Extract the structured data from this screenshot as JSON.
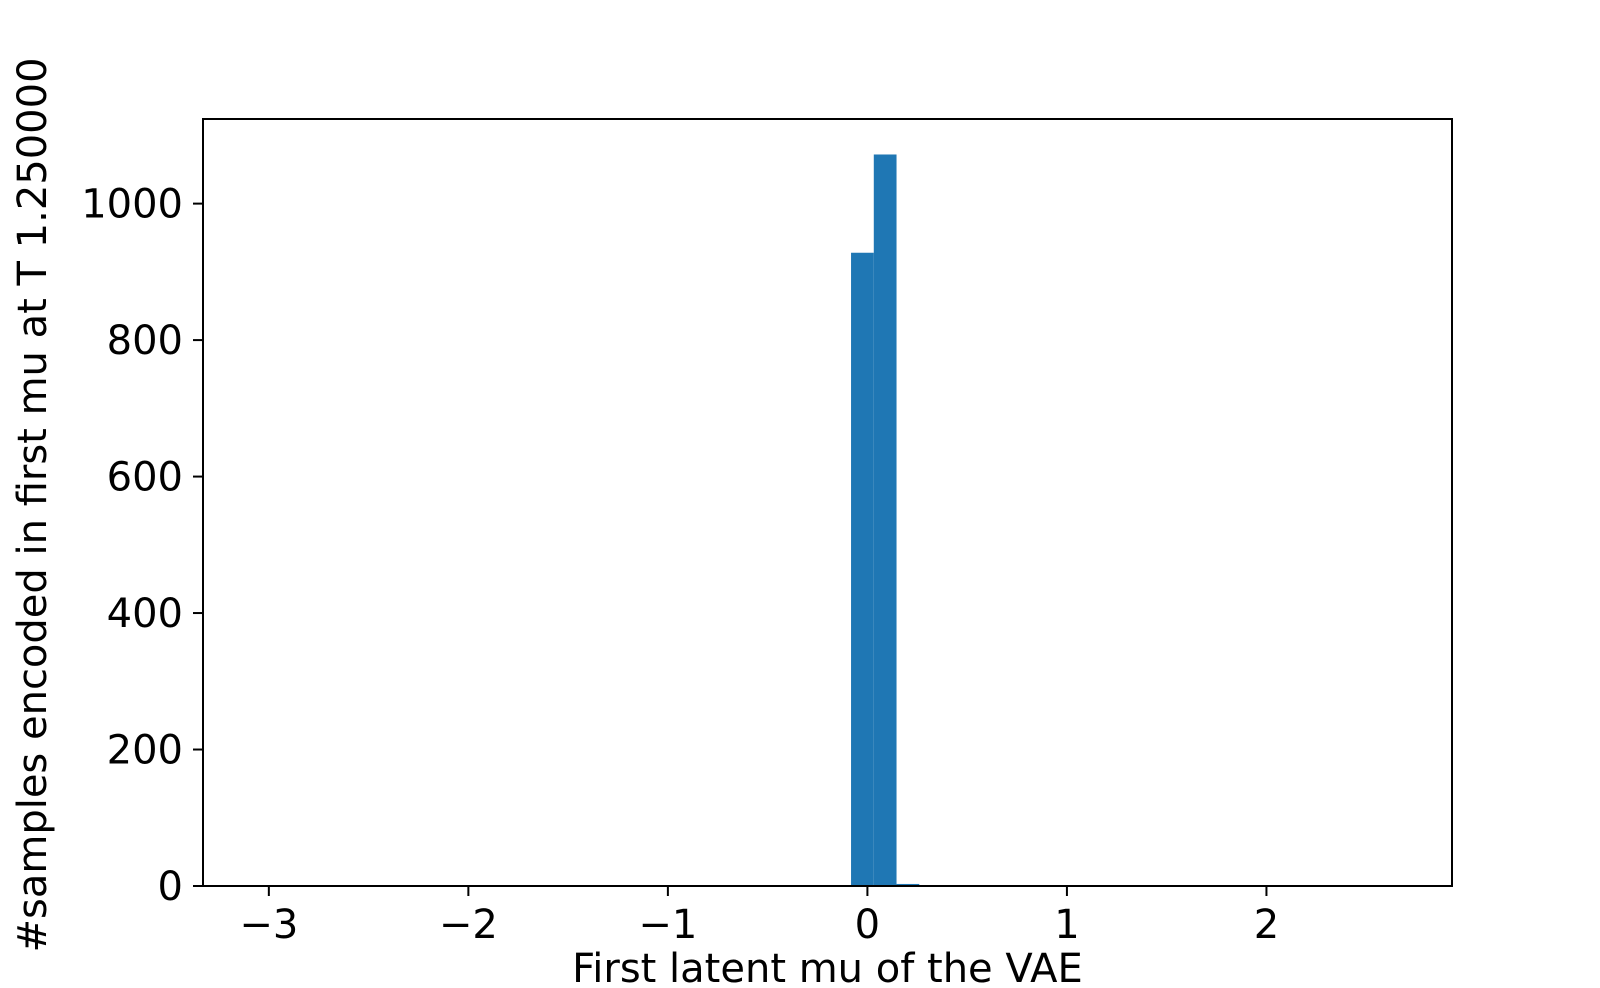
{
  "chart_data": {
    "type": "bar",
    "xlabel": "First latent mu of the VAE",
    "ylabel": "#samples encoded in first mu at T 1.250000",
    "xlim": [
      -3.33,
      2.93
    ],
    "ylim": [
      0,
      1124
    ],
    "xticks": [
      {
        "value": -3,
        "label": "−3"
      },
      {
        "value": -2,
        "label": "−2"
      },
      {
        "value": -1,
        "label": "−1"
      },
      {
        "value": 0,
        "label": "0"
      },
      {
        "value": 1,
        "label": "1"
      },
      {
        "value": 2,
        "label": "2"
      }
    ],
    "yticks": [
      {
        "value": 0,
        "label": "0"
      },
      {
        "value": 200,
        "label": "200"
      },
      {
        "value": 400,
        "label": "400"
      },
      {
        "value": 600,
        "label": "600"
      },
      {
        "value": 800,
        "label": "800"
      },
      {
        "value": 1000,
        "label": "1000"
      }
    ],
    "bins": [
      {
        "x0": -0.082,
        "x1": 0.032,
        "count": 928
      },
      {
        "x0": 0.032,
        "x1": 0.146,
        "count": 1072
      },
      {
        "x0": 0.146,
        "x1": 0.26,
        "count": 3
      }
    ],
    "grid": false,
    "bar_color": "#1f77b4"
  }
}
